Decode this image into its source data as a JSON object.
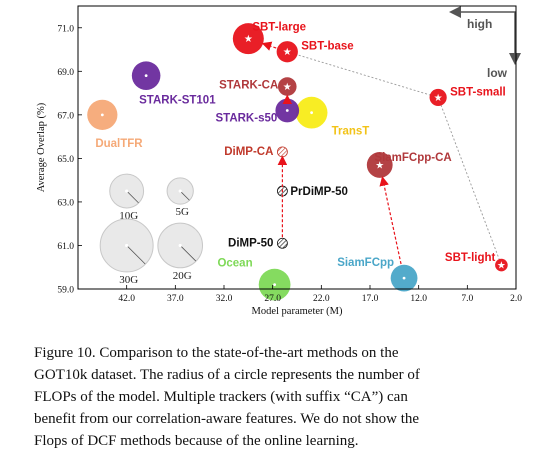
{
  "chart_data": {
    "type": "scatter",
    "subtype": "bubble",
    "xlabel": "Model parameter (M)",
    "ylabel": "Average Overlap (%)",
    "xlim": [
      47.0,
      2.0
    ],
    "x_reversed": true,
    "ylim": [
      59.0,
      72.0
    ],
    "xticks": [
      42.0,
      37.0,
      32.0,
      27.0,
      22.0,
      17.0,
      12.0,
      7.0,
      2.0
    ],
    "xtick_labels": [
      "42.0",
      "37.0",
      "32.0",
      "27.0",
      "22.0",
      "17.0",
      "12.0",
      "7.0",
      "2.0"
    ],
    "yticks": [
      59.0,
      61.0,
      63.0,
      65.0,
      67.0,
      69.0,
      71.0
    ],
    "ytick_labels": [
      "59.0",
      "61.0",
      "63.0",
      "65.0",
      "67.0",
      "69.0",
      "71.0"
    ],
    "grid": false,
    "annotations": {
      "high": "high",
      "low": "low"
    },
    "points": [
      {
        "name": "SBT-large",
        "x": 29.5,
        "y": 70.5,
        "size": 7.5,
        "color": "#e8131b",
        "label_color": "#e8131b"
      },
      {
        "name": "SBT-base",
        "x": 25.5,
        "y": 69.9,
        "size": 2.5,
        "color": "#e8131b",
        "label_color": "#e8131b"
      },
      {
        "name": "SBT-small",
        "x": 10.0,
        "y": 67.8,
        "size": 1.2,
        "color": "#e8131b",
        "label_color": "#e8131b"
      },
      {
        "name": "SBT-light",
        "x": 3.5,
        "y": 60.1,
        "size": 0.3,
        "color": "#e8131b",
        "label_color": "#e8131b"
      },
      {
        "name": "STARK-CA",
        "x": 25.5,
        "y": 68.3,
        "size": 1.6,
        "color": "#b0383b",
        "label_color": "#b0383b"
      },
      {
        "name": "STARK-ST101",
        "x": 40.0,
        "y": 68.8,
        "size": 6.0,
        "color": "#6a2b9d",
        "label_color": "#6a2b9d"
      },
      {
        "name": "STARK-s50",
        "x": 25.5,
        "y": 67.2,
        "size": 3.5,
        "color": "#6a2b9d",
        "label_color": "#6a2b9d"
      },
      {
        "name": "TransT",
        "x": 23.0,
        "y": 67.1,
        "size": 8.0,
        "color": "#f8ec18",
        "label_color": "#f2c318"
      },
      {
        "name": "DualTFR",
        "x": 44.5,
        "y": 67.0,
        "size": 7.0,
        "color": "#f5a977",
        "label_color": "#f5a977"
      },
      {
        "name": "DiMP-CA",
        "x": 26.0,
        "y": 65.3,
        "size": null,
        "color": "#c0392b",
        "label_color": "#c0392b"
      },
      {
        "name": "SiamFCpp-CA",
        "x": 16.0,
        "y": 64.7,
        "size": 4.5,
        "color": "#b0383b",
        "label_color": "#b0383b"
      },
      {
        "name": "PrDiMP-50",
        "x": 26.0,
        "y": 63.5,
        "size": null,
        "color": "#111111",
        "label_color": "#111111"
      },
      {
        "name": "DiMP-50",
        "x": 26.0,
        "y": 61.1,
        "size": null,
        "color": "#111111",
        "label_color": "#111111"
      },
      {
        "name": "SiamFCpp",
        "x": 13.5,
        "y": 59.5,
        "size": 5.0,
        "color": "#4aa6c8",
        "label_color": "#4aa6c8"
      },
      {
        "name": "Ocean",
        "x": 26.8,
        "y": 59.2,
        "size": 8.0,
        "color": "#7ed957",
        "label_color": "#7ed957"
      }
    ],
    "flops_legend": [
      {
        "label": "10G",
        "x": 42.0,
        "y": 63.5,
        "size": 10
      },
      {
        "label": "5G",
        "x": 36.5,
        "y": 63.5,
        "size": 5
      },
      {
        "label": "30G",
        "x": 42.0,
        "y": 61.0,
        "size": 30
      },
      {
        "label": "20G",
        "x": 36.5,
        "y": 61.0,
        "size": 20
      }
    ],
    "improvement_arrows": [
      {
        "from": "DiMP-50",
        "to": "DiMP-CA"
      },
      {
        "from": "SiamFCpp",
        "to": "SiamFCpp-CA"
      },
      {
        "from": "STARK-s50",
        "to": "STARK-CA"
      },
      {
        "from": "SBT-base",
        "to": "SBT-large"
      }
    ],
    "trend_lines": [
      {
        "from": "SBT-base",
        "to": "SBT-small"
      },
      {
        "from": "SBT-small",
        "to": "SBT-light"
      }
    ]
  },
  "caption": {
    "lines": [
      "Figure 10.  Comparison to the state-of-the-art methods on the",
      "GOT10k dataset. The radius of a circle represents the number of",
      "FLOPs of the model. Multiple trackers (with suffix “CA”) can",
      "benefit from our correlation-aware features. We do not show the",
      "Flops of DCF methods because of the online learning."
    ]
  }
}
